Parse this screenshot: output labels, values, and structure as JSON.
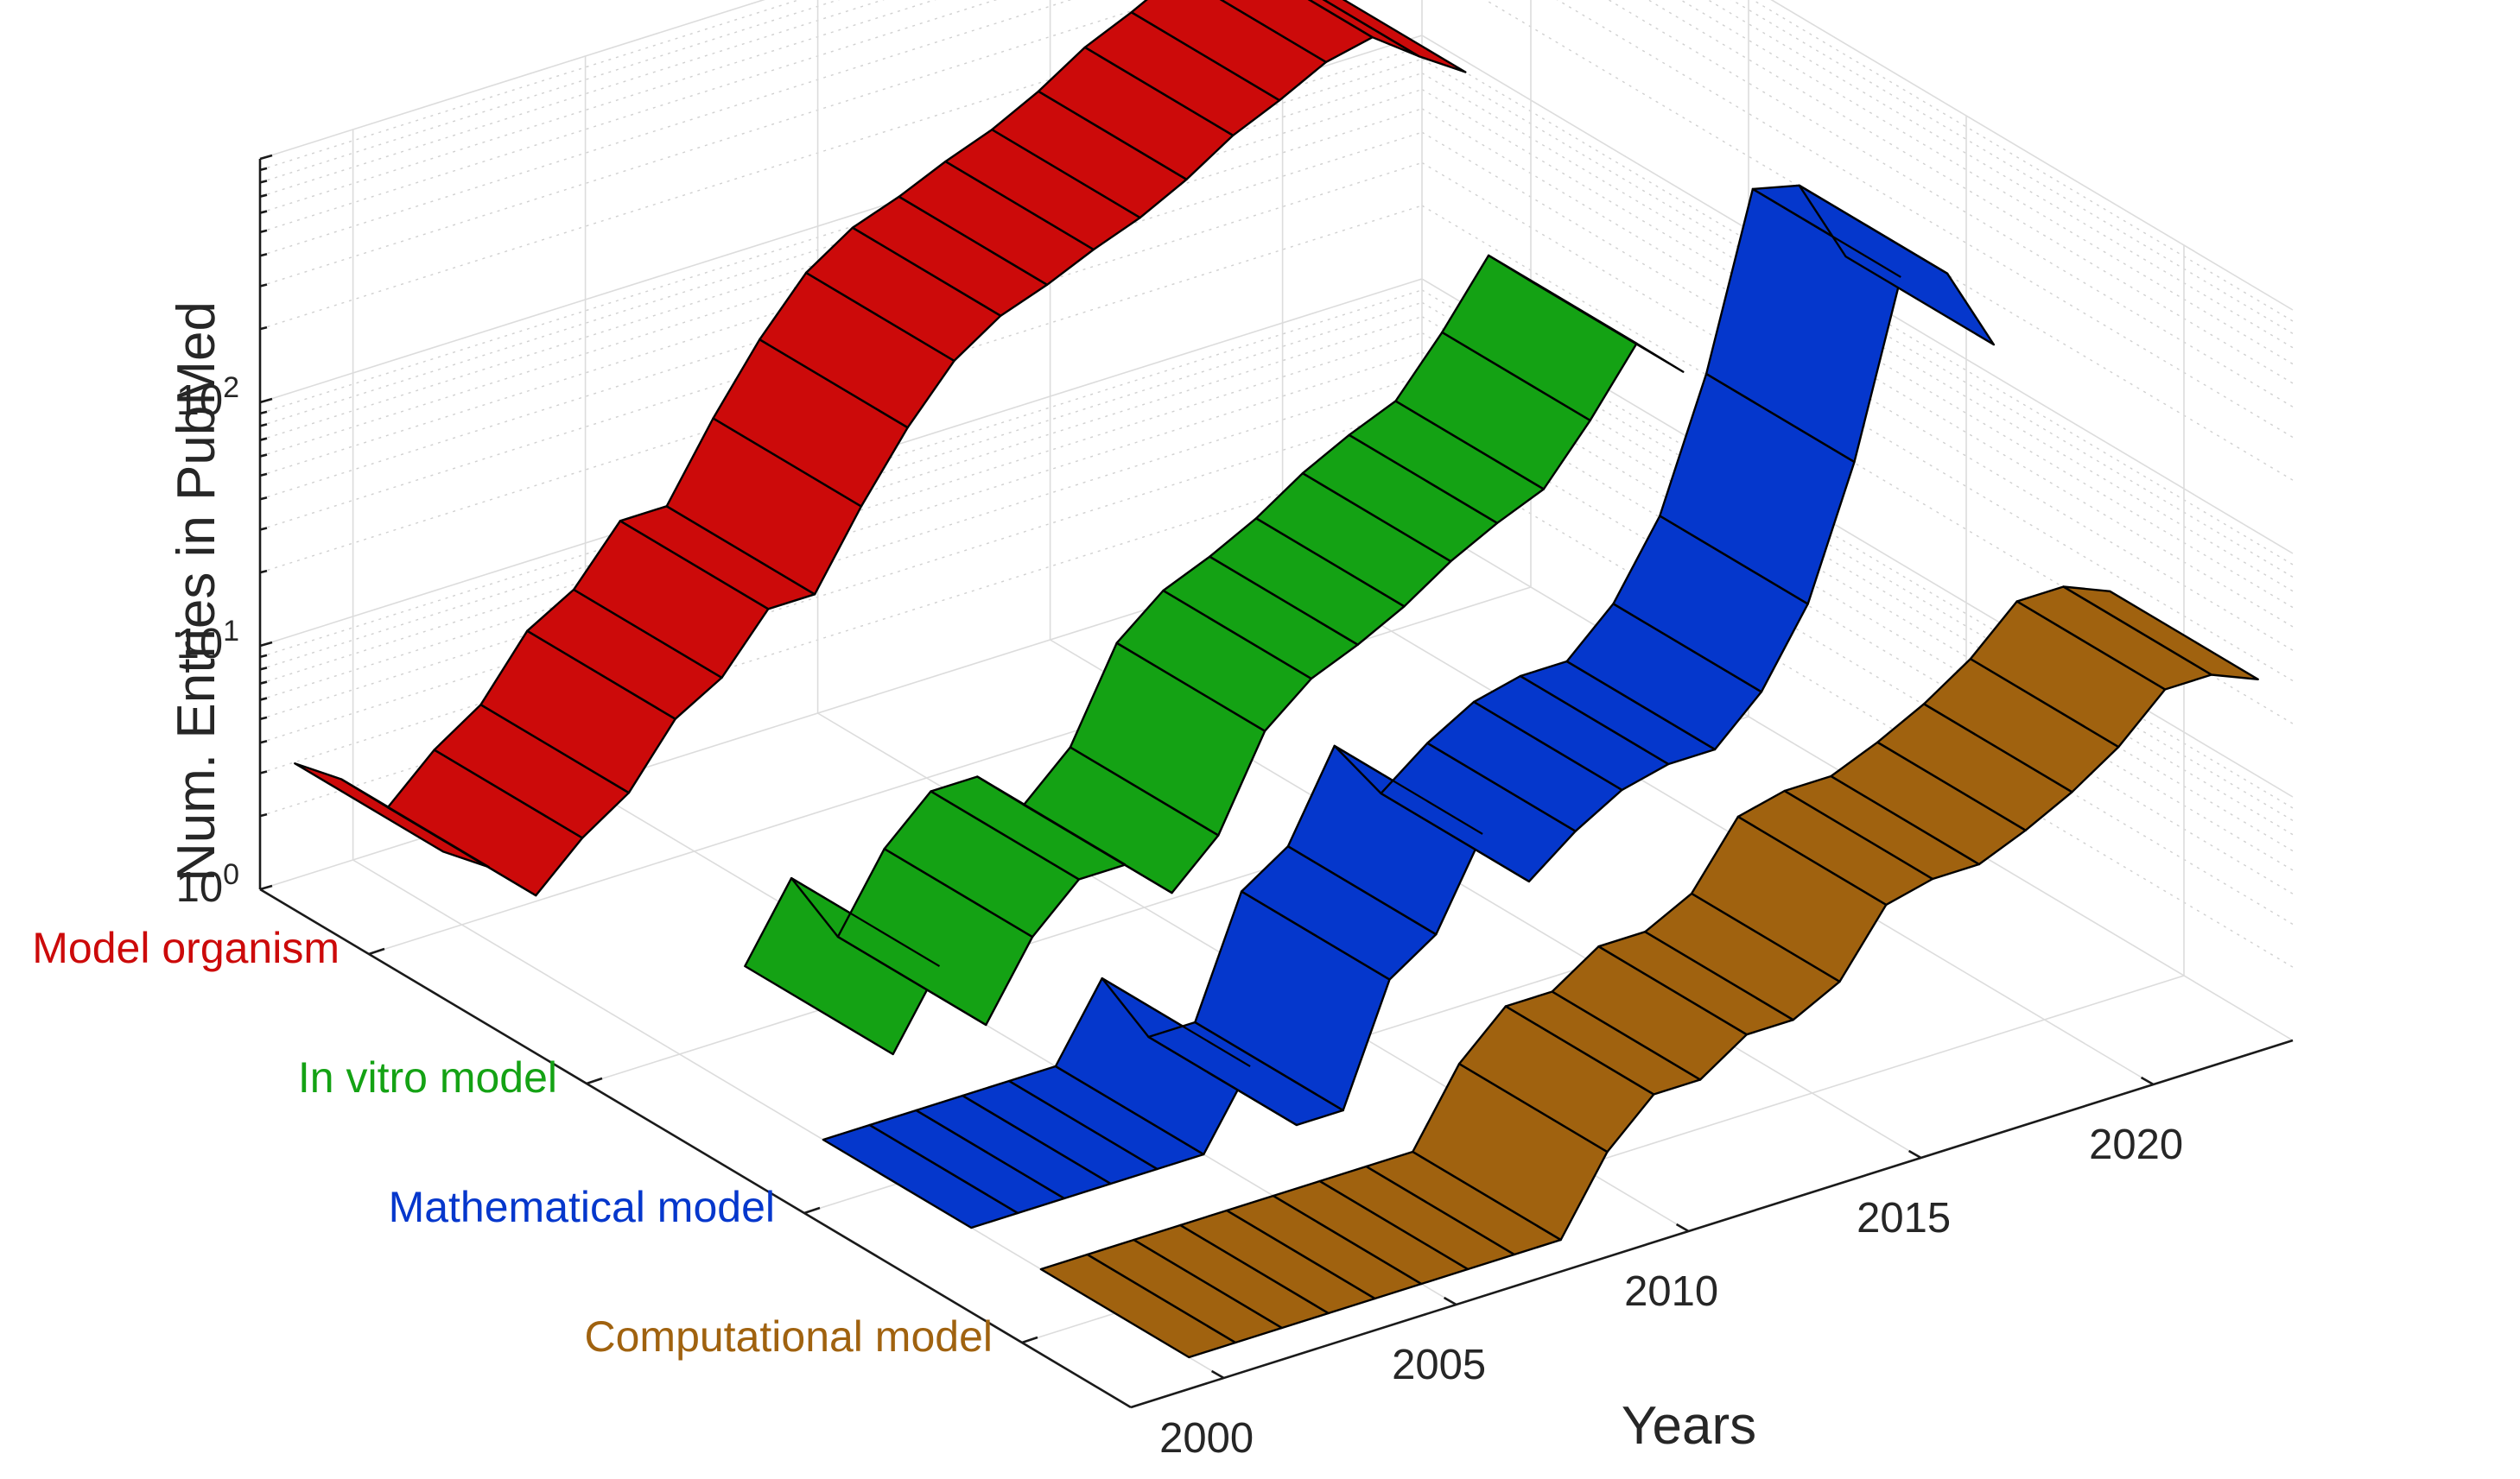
{
  "chart_data": {
    "type": "surface-3d-ribbon",
    "xlabel": "Years",
    "ylabel": "",
    "zlabel": "Num. Entries in PubMed",
    "zscale": "log",
    "zlim": [
      1,
      1000
    ],
    "xlim": [
      1998,
      2023
    ],
    "grid": true,
    "year_ticks": [
      2000,
      2005,
      2010,
      2015,
      2020
    ],
    "z_ticks": [
      {
        "base": "10",
        "exp": "0"
      },
      {
        "base": "10",
        "exp": "1"
      },
      {
        "base": "10",
        "exp": "2"
      }
    ],
    "series": [
      {
        "name": "Model organism",
        "color": "#cc0a0a",
        "years": [
          1998,
          1999,
          2000,
          2001,
          2002,
          2003,
          2004,
          2005,
          2006,
          2007,
          2008,
          2009,
          2010,
          2011,
          2012,
          2013,
          2014,
          2015,
          2016,
          2017,
          2018,
          2019,
          2020
        ],
        "values": [
          4,
          3,
          2,
          3,
          4,
          7,
          9,
          15,
          15,
          30,
          55,
          90,
          120,
          140,
          170,
          200,
          250,
          330,
          400,
          500,
          550,
          400,
          300
        ]
      },
      {
        "name": "In vitro model",
        "color": "#14a214",
        "years": [
          2003,
          2004,
          2005,
          2006,
          2007,
          2008,
          2009,
          2010,
          2011,
          2012,
          2013,
          2014,
          2015,
          2016,
          2017,
          2018,
          2019,
          2020
        ],
        "values": [
          1,
          2,
          1,
          2,
          3,
          3,
          2,
          3,
          7,
          10,
          12,
          15,
          20,
          25,
          30,
          50,
          90,
          60
        ]
      },
      {
        "name": "Mathematical model",
        "color": "#0537cc",
        "years": [
          2000,
          2001,
          2002,
          2003,
          2004,
          2005,
          2006,
          2007,
          2008,
          2009,
          2010,
          2011,
          2012,
          2013,
          2014,
          2015,
          2016,
          2017,
          2018,
          2019,
          2020,
          2021,
          2022
        ],
        "values": [
          1,
          1,
          1,
          1,
          1,
          1,
          2,
          1,
          1,
          3,
          4,
          9,
          5,
          7,
          9,
          10,
          10,
          15,
          30,
          100,
          500,
          450,
          200
        ]
      },
      {
        "name": "Computational model",
        "color": "#a0620f",
        "years": [
          2000,
          2001,
          2002,
          2003,
          2004,
          2005,
          2006,
          2007,
          2008,
          2009,
          2010,
          2011,
          2012,
          2013,
          2014,
          2015,
          2016,
          2017,
          2018,
          2019,
          2020,
          2021,
          2022,
          2023
        ],
        "values": [
          1,
          1,
          1,
          1,
          1,
          1,
          1,
          1,
          1,
          2,
          3,
          3,
          4,
          4,
          5,
          9,
          10,
          10,
          12,
          15,
          20,
          30,
          30,
          25
        ]
      }
    ]
  }
}
